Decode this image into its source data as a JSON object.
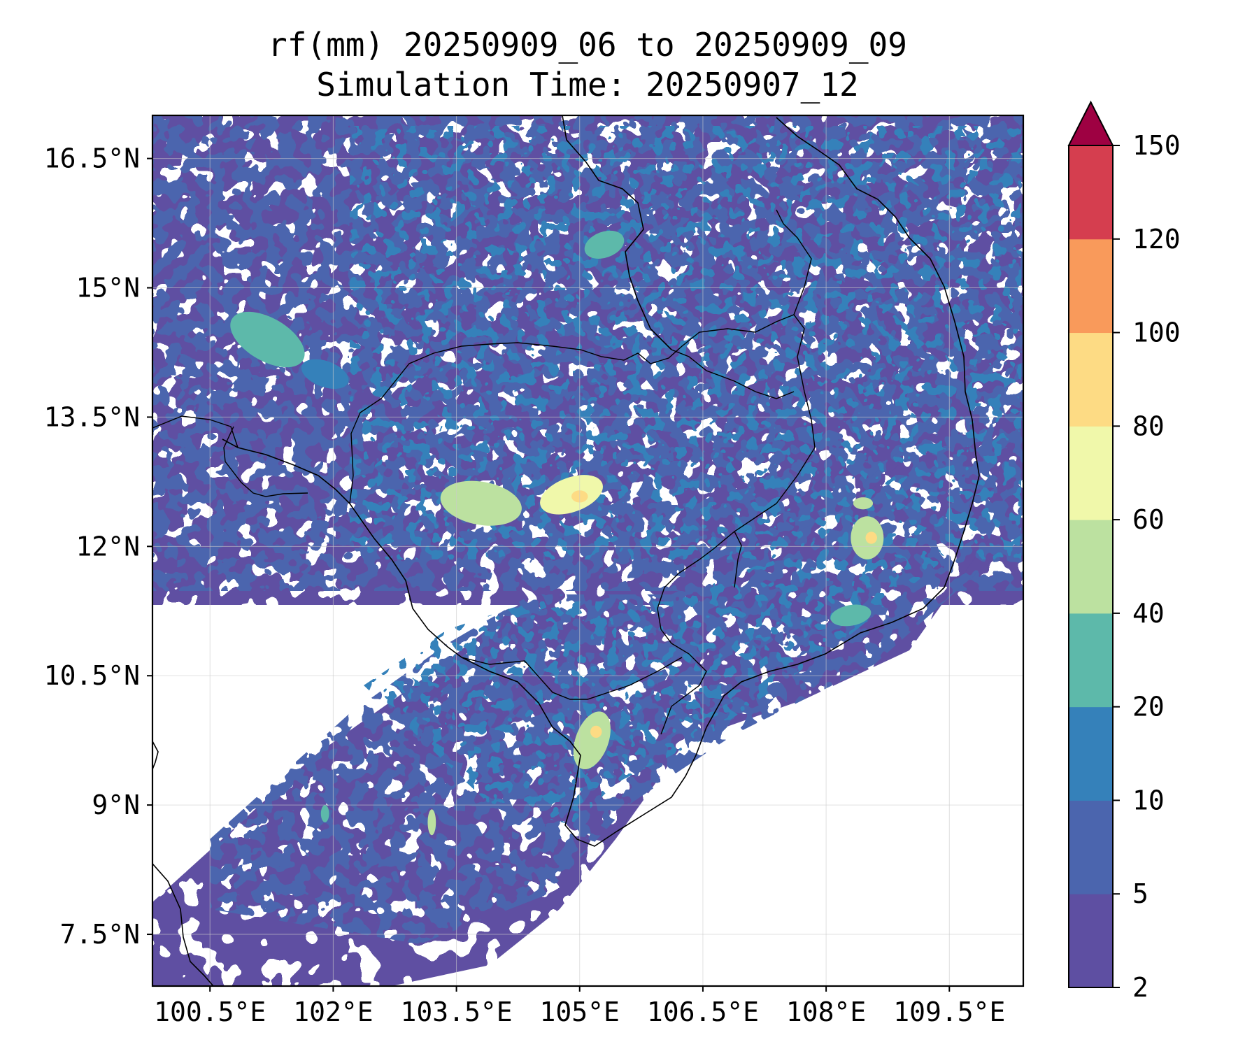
{
  "title_line1": "rf(mm) 20250909_06 to 20250909_09",
  "title_line2": "Simulation Time: 20250907_12",
  "map": {
    "lon_range": [
      99.8,
      110.4
    ],
    "lat_range": [
      6.9,
      17.0
    ],
    "lon_ticks": [
      {
        "value": 100.5,
        "label": "100.5°E"
      },
      {
        "value": 102.0,
        "label": "102°E"
      },
      {
        "value": 103.5,
        "label": "103.5°E"
      },
      {
        "value": 105.0,
        "label": "105°E"
      },
      {
        "value": 106.5,
        "label": "106.5°E"
      },
      {
        "value": 108.0,
        "label": "108°E"
      },
      {
        "value": 109.5,
        "label": "109.5°E"
      }
    ],
    "lat_ticks": [
      {
        "value": 16.5,
        "label": "16.5°N"
      },
      {
        "value": 15.0,
        "label": "15°N"
      },
      {
        "value": 13.5,
        "label": "13.5°N"
      },
      {
        "value": 12.0,
        "label": "12°N"
      },
      {
        "value": 10.5,
        "label": "10.5°N"
      },
      {
        "value": 9.0,
        "label": "9°N"
      },
      {
        "value": 7.5,
        "label": "7.5°N"
      }
    ],
    "gridlines": true
  },
  "colorbar": {
    "levels": [
      {
        "label": "2"
      },
      {
        "label": "5"
      },
      {
        "label": "10"
      },
      {
        "label": "20"
      },
      {
        "label": "40"
      },
      {
        "label": "60"
      },
      {
        "label": "80"
      },
      {
        "label": "100"
      },
      {
        "label": "120"
      },
      {
        "label": "150"
      }
    ],
    "colors": [
      "#5e4fa2",
      "#4b65ae",
      "#3581ba",
      "#5db9aa",
      "#bce1a0",
      "#f0f8aa",
      "#fddb84",
      "#f99a5b",
      "#d53e4f"
    ],
    "extend_color": "#9e0142"
  },
  "rain_cells": [
    {
      "lon": 101.2,
      "lat": 14.4,
      "rx": 0.5,
      "ry": 0.25,
      "rot": 30,
      "level": 3
    },
    {
      "lon": 101.9,
      "lat": 14.0,
      "rx": 0.3,
      "ry": 0.15,
      "rot": 20,
      "level": 2
    },
    {
      "lon": 103.8,
      "lat": 12.5,
      "rx": 0.5,
      "ry": 0.25,
      "rot": 10,
      "level": 4
    },
    {
      "lon": 104.9,
      "lat": 12.6,
      "rx": 0.4,
      "ry": 0.2,
      "rot": -20,
      "level": 5
    },
    {
      "lon": 105.0,
      "lat": 12.58,
      "rx": 0.1,
      "ry": 0.07,
      "rot": 0,
      "level": 6
    },
    {
      "lon": 105.3,
      "lat": 15.5,
      "rx": 0.25,
      "ry": 0.15,
      "rot": -20,
      "level": 3
    },
    {
      "lon": 105.15,
      "lat": 9.75,
      "rx": 0.2,
      "ry": 0.35,
      "rot": 20,
      "level": 4
    },
    {
      "lon": 105.2,
      "lat": 9.85,
      "rx": 0.07,
      "ry": 0.07,
      "rot": 0,
      "level": 6
    },
    {
      "lon": 108.5,
      "lat": 12.1,
      "rx": 0.2,
      "ry": 0.25,
      "rot": 0,
      "level": 4
    },
    {
      "lon": 108.55,
      "lat": 12.1,
      "rx": 0.07,
      "ry": 0.07,
      "rot": 0,
      "level": 6
    },
    {
      "lon": 108.3,
      "lat": 11.2,
      "rx": 0.25,
      "ry": 0.12,
      "rot": -10,
      "level": 3
    },
    {
      "lon": 108.45,
      "lat": 12.5,
      "rx": 0.12,
      "ry": 0.07,
      "rot": 0,
      "level": 4
    },
    {
      "lon": 103.2,
      "lat": 8.8,
      "rx": 0.05,
      "ry": 0.15,
      "rot": 0,
      "level": 4
    },
    {
      "lon": 101.9,
      "lat": 8.9,
      "rx": 0.05,
      "ry": 0.1,
      "rot": 0,
      "level": 3
    }
  ]
}
